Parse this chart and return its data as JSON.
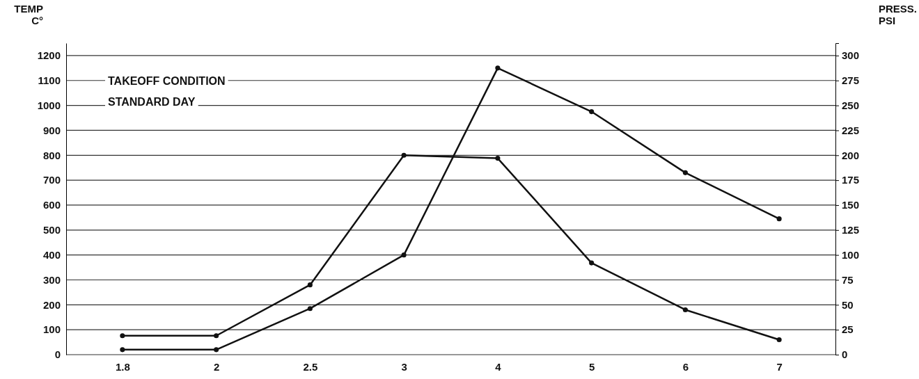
{
  "chart_data": {
    "type": "line",
    "categories": [
      "1.8",
      "2",
      "2.5",
      "3",
      "4",
      "5",
      "6",
      "7"
    ],
    "ylabel": "TEMP\nC°",
    "y2label": "PRESS.\nPSI",
    "annotations": [
      "TAKEOFF CONDITION",
      "STANDARD DAY"
    ],
    "series": [
      {
        "color": "#111111",
        "values": [
          20,
          20,
          185,
          400,
          1150,
          975,
          730,
          545
        ]
      },
      {
        "color": "#111111",
        "axis": "y2",
        "values": [
          19,
          19,
          70,
          200,
          197,
          92,
          45,
          15
        ]
      }
    ],
    "ylim": [
      0,
      1250
    ],
    "yticks": [
      0,
      100,
      200,
      300,
      400,
      500,
      600,
      700,
      800,
      900,
      1000,
      1100,
      1200
    ],
    "y2lim": [
      0,
      312.5
    ],
    "y2ticks": [
      0,
      25,
      50,
      75,
      100,
      125,
      150,
      175,
      200,
      225,
      250,
      275,
      300
    ],
    "grid": "y",
    "marker": "circle",
    "line_style": "solid"
  }
}
